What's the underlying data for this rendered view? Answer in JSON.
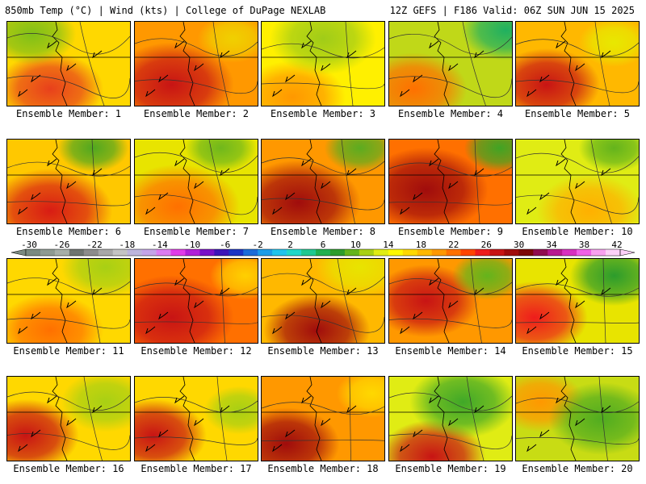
{
  "header": {
    "left": "850mb Temp (°C) | Wind (kts) | College of DuPage NEXLAB",
    "right": "12Z GEFS | F186 Valid: 06Z SUN JUN 15 2025"
  },
  "colorbar": {
    "labels": [
      "-30",
      "-26",
      "-22",
      "-18",
      "-14",
      "-10",
      "-6",
      "-2",
      "2",
      "6",
      "10",
      "14",
      "18",
      "22",
      "26",
      "30",
      "34",
      "38",
      "42"
    ],
    "colors": [
      "#7a8a80",
      "#8e9a92",
      "#a6aea8",
      "#6e7470",
      "#8c8c8c",
      "#a8a8a8",
      "#c4c4c4",
      "#bcb4dc",
      "#c4a4e8",
      "#dc7cf0",
      "#e03ce8",
      "#b020d8",
      "#7810c8",
      "#3c14b8",
      "#1c34c4",
      "#1c6cd8",
      "#1c9ce8",
      "#20c4ec",
      "#20d8c8",
      "#20c890",
      "#20b050",
      "#2c9c2c",
      "#64b41c",
      "#a8d014",
      "#e0ec14",
      "#fff800",
      "#ffd800",
      "#ffb800",
      "#ff9800",
      "#ff7000",
      "#ff4400",
      "#ee1c1c",
      "#c81414",
      "#a00c0c",
      "#7c0808",
      "#900c50",
      "#b81890",
      "#d830c0",
      "#f060e8",
      "#f8a0f0",
      "#fcd0f8"
    ]
  },
  "members": [
    {
      "label": "Ensemble Member: 1",
      "bg": "#ffd800",
      "blobs": [
        {
          "c": "#e8401c",
          "r": 0.3
        },
        {
          "c": "#80c018",
          "r": 0.25
        }
      ]
    },
    {
      "label": "Ensemble Member: 2",
      "bg": "#ff9800",
      "blobs": [
        {
          "c": "#c81414",
          "r": 0.35
        },
        {
          "c": "#f0d000",
          "r": 0.2
        }
      ]
    },
    {
      "label": "Ensemble Member: 3",
      "bg": "#fff000",
      "blobs": [
        {
          "c": "#ff9800",
          "r": 0.3
        },
        {
          "c": "#a0cc18",
          "r": 0.3
        }
      ]
    },
    {
      "label": "Ensemble Member: 4",
      "bg": "#c0d818",
      "blobs": [
        {
          "c": "#ff7000",
          "r": 0.3
        },
        {
          "c": "#20b060",
          "r": 0.25
        }
      ]
    },
    {
      "label": "Ensemble Member: 5",
      "bg": "#ffb800",
      "blobs": [
        {
          "c": "#c81414",
          "r": 0.3
        },
        {
          "c": "#e8e800",
          "r": 0.2
        }
      ]
    },
    {
      "label": "Ensemble Member: 6",
      "bg": "#ffc800",
      "blobs": [
        {
          "c": "#d81c14",
          "r": 0.35
        },
        {
          "c": "#50a820",
          "r": 0.2
        }
      ]
    },
    {
      "label": "Ensemble Member: 7",
      "bg": "#e8e400",
      "blobs": [
        {
          "c": "#ff7000",
          "r": 0.35
        },
        {
          "c": "#70b81c",
          "r": 0.2
        }
      ]
    },
    {
      "label": "Ensemble Member: 8",
      "bg": "#ff9800",
      "blobs": [
        {
          "c": "#a00c0c",
          "r": 0.35
        },
        {
          "c": "#5cac20",
          "r": 0.2
        }
      ]
    },
    {
      "label": "Ensemble Member: 9",
      "bg": "#ff7000",
      "blobs": [
        {
          "c": "#a00c0c",
          "r": 0.35
        },
        {
          "c": "#40a424",
          "r": 0.2
        }
      ]
    },
    {
      "label": "Ensemble Member: 10",
      "bg": "#e0ec14",
      "blobs": [
        {
          "c": "#ffb000",
          "r": 0.3
        },
        {
          "c": "#64b41c",
          "r": 0.2
        }
      ]
    },
    {
      "label": "Ensemble Member: 11",
      "bg": "#ffd800",
      "blobs": [
        {
          "c": "#ff7000",
          "r": 0.3
        },
        {
          "c": "#a8d014",
          "r": 0.25
        }
      ]
    },
    {
      "label": "Ensemble Member: 12",
      "bg": "#ff7000",
      "blobs": [
        {
          "c": "#c81414",
          "r": 0.35
        },
        {
          "c": "#ffd000",
          "r": 0.2
        }
      ]
    },
    {
      "label": "Ensemble Member: 13",
      "bg": "#ffb800",
      "blobs": [
        {
          "c": "#a00c0c",
          "r": 0.3
        },
        {
          "c": "#e8e400",
          "r": 0.25
        }
      ]
    },
    {
      "label": "Ensemble Member: 14",
      "bg": "#ff9800",
      "blobs": [
        {
          "c": "#c81414",
          "r": 0.3
        },
        {
          "c": "#64b41c",
          "r": 0.2
        }
      ]
    },
    {
      "label": "Ensemble Member: 15",
      "bg": "#e8e400",
      "blobs": [
        {
          "c": "#ee1c1c",
          "r": 0.3
        },
        {
          "c": "#2c9c2c",
          "r": 0.25
        }
      ]
    },
    {
      "label": "Ensemble Member: 16",
      "bg": "#ffd800",
      "blobs": [
        {
          "c": "#c81414",
          "r": 0.3
        },
        {
          "c": "#a8d014",
          "r": 0.25
        }
      ]
    },
    {
      "label": "Ensemble Member: 17",
      "bg": "#ffd800",
      "blobs": [
        {
          "c": "#c81414",
          "r": 0.3
        },
        {
          "c": "#a8d014",
          "r": 0.2
        }
      ]
    },
    {
      "label": "Ensemble Member: 18",
      "bg": "#ff9800",
      "blobs": [
        {
          "c": "#a00c0c",
          "r": 0.3
        },
        {
          "c": "#ffd800",
          "r": 0.2
        }
      ]
    },
    {
      "label": "Ensemble Member: 19",
      "bg": "#e0ec14",
      "blobs": [
        {
          "c": "#c81414",
          "r": 0.3
        },
        {
          "c": "#40a828",
          "r": 0.3
        }
      ]
    },
    {
      "label": "Ensemble Member: 20",
      "bg": "#c8dc14",
      "blobs": [
        {
          "c": "#ff9800",
          "r": 0.25
        },
        {
          "c": "#50ac20",
          "r": 0.3
        }
      ]
    }
  ]
}
